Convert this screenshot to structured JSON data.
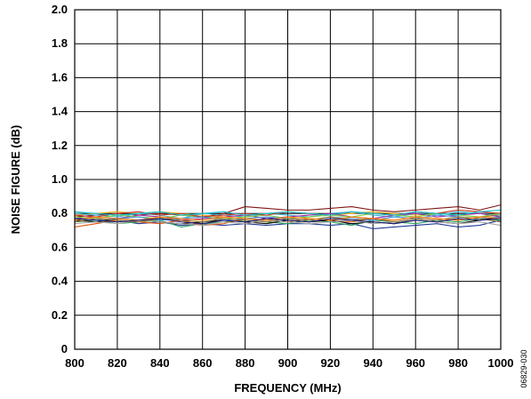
{
  "chart_data": {
    "type": "line",
    "xlabel": "FREQUENCY (MHz)",
    "ylabel": "NOISE FIGURE (dB)",
    "xlim": [
      800,
      1000
    ],
    "ylim": [
      0,
      2.0
    ],
    "x_ticks": [
      "800",
      "820",
      "840",
      "860",
      "880",
      "900",
      "920",
      "940",
      "960",
      "980",
      "1000"
    ],
    "y_ticks": [
      "0",
      "0.2",
      "0.4",
      "0.6",
      "0.8",
      "1.0",
      "1.2",
      "1.4",
      "1.6",
      "1.8",
      "2.0"
    ],
    "grid": true,
    "x": [
      800,
      810,
      820,
      830,
      840,
      850,
      860,
      870,
      880,
      890,
      900,
      910,
      920,
      930,
      940,
      950,
      960,
      970,
      980,
      990,
      1000
    ],
    "series": [
      {
        "color": "#7f1416",
        "values": [
          0.78,
          0.79,
          0.8,
          0.79,
          0.8,
          0.79,
          0.78,
          0.8,
          0.84,
          0.83,
          0.82,
          0.82,
          0.83,
          0.84,
          0.82,
          0.81,
          0.82,
          0.83,
          0.84,
          0.82,
          0.85
        ]
      },
      {
        "color": "#1f3a93",
        "values": [
          0.76,
          0.75,
          0.76,
          0.74,
          0.75,
          0.73,
          0.74,
          0.73,
          0.74,
          0.73,
          0.74,
          0.74,
          0.73,
          0.74,
          0.71,
          0.72,
          0.73,
          0.74,
          0.72,
          0.73,
          0.76
        ]
      },
      {
        "color": "#e8b21c",
        "values": [
          0.79,
          0.8,
          0.81,
          0.8,
          0.81,
          0.8,
          0.79,
          0.78,
          0.79,
          0.8,
          0.81,
          0.8,
          0.79,
          0.8,
          0.81,
          0.8,
          0.79,
          0.8,
          0.82,
          0.81,
          0.8
        ]
      },
      {
        "color": "#2ca25f",
        "values": [
          0.75,
          0.76,
          0.74,
          0.75,
          0.76,
          0.72,
          0.74,
          0.75,
          0.76,
          0.75,
          0.74,
          0.76,
          0.75,
          0.73,
          0.76,
          0.75,
          0.74,
          0.76,
          0.75,
          0.77,
          0.76
        ]
      },
      {
        "color": "#e6550d",
        "values": [
          0.72,
          0.74,
          0.76,
          0.75,
          0.74,
          0.76,
          0.73,
          0.74,
          0.77,
          0.76,
          0.75,
          0.77,
          0.76,
          0.75,
          0.77,
          0.76,
          0.78,
          0.77,
          0.76,
          0.78,
          0.79
        ]
      },
      {
        "color": "#3cb7d8",
        "values": [
          0.8,
          0.79,
          0.78,
          0.8,
          0.79,
          0.77,
          0.8,
          0.79,
          0.78,
          0.8,
          0.79,
          0.78,
          0.8,
          0.81,
          0.79,
          0.78,
          0.8,
          0.79,
          0.81,
          0.8,
          0.79
        ]
      },
      {
        "color": "#9e2a9e",
        "values": [
          0.77,
          0.78,
          0.77,
          0.79,
          0.78,
          0.76,
          0.77,
          0.78,
          0.79,
          0.77,
          0.78,
          0.79,
          0.8,
          0.78,
          0.77,
          0.79,
          0.8,
          0.78,
          0.79,
          0.8,
          0.78
        ]
      },
      {
        "color": "#000000",
        "values": [
          0.76,
          0.75,
          0.77,
          0.76,
          0.75,
          0.74,
          0.75,
          0.76,
          0.75,
          0.74,
          0.76,
          0.75,
          0.76,
          0.74,
          0.75,
          0.74,
          0.76,
          0.75,
          0.74,
          0.76,
          0.78
        ]
      },
      {
        "color": "#a6a6a6",
        "values": [
          0.74,
          0.75,
          0.74,
          0.76,
          0.75,
          0.74,
          0.73,
          0.75,
          0.74,
          0.76,
          0.75,
          0.74,
          0.75,
          0.76,
          0.74,
          0.75,
          0.76,
          0.75,
          0.74,
          0.75,
          0.73
        ]
      },
      {
        "color": "#7ecb3a",
        "values": [
          0.78,
          0.77,
          0.79,
          0.78,
          0.77,
          0.79,
          0.78,
          0.77,
          0.78,
          0.79,
          0.77,
          0.78,
          0.79,
          0.78,
          0.8,
          0.79,
          0.78,
          0.8,
          0.79,
          0.78,
          0.8
        ]
      },
      {
        "color": "#c0392b",
        "values": [
          0.79,
          0.78,
          0.8,
          0.81,
          0.79,
          0.8,
          0.78,
          0.79,
          0.8,
          0.79,
          0.81,
          0.8,
          0.79,
          0.81,
          0.8,
          0.79,
          0.81,
          0.8,
          0.82,
          0.81,
          0.8
        ]
      },
      {
        "color": "#4a90d9",
        "values": [
          0.77,
          0.76,
          0.77,
          0.78,
          0.76,
          0.77,
          0.78,
          0.76,
          0.77,
          0.78,
          0.77,
          0.76,
          0.78,
          0.77,
          0.76,
          0.78,
          0.77,
          0.79,
          0.78,
          0.77,
          0.78
        ]
      },
      {
        "color": "#8c6d31",
        "values": [
          0.75,
          0.77,
          0.76,
          0.75,
          0.77,
          0.76,
          0.75,
          0.77,
          0.76,
          0.75,
          0.77,
          0.76,
          0.78,
          0.76,
          0.77,
          0.75,
          0.77,
          0.76,
          0.78,
          0.77,
          0.75
        ]
      },
      {
        "color": "#17becf",
        "values": [
          0.81,
          0.8,
          0.79,
          0.8,
          0.81,
          0.79,
          0.8,
          0.81,
          0.79,
          0.8,
          0.81,
          0.8,
          0.79,
          0.81,
          0.8,
          0.79,
          0.81,
          0.8,
          0.79,
          0.81,
          0.82
        ]
      },
      {
        "color": "#ff7f0e",
        "values": [
          0.76,
          0.78,
          0.77,
          0.76,
          0.78,
          0.77,
          0.76,
          0.78,
          0.77,
          0.76,
          0.78,
          0.77,
          0.76,
          0.78,
          0.77,
          0.76,
          0.78,
          0.77,
          0.76,
          0.78,
          0.77
        ]
      },
      {
        "color": "#1a1a6e",
        "values": [
          0.77,
          0.76,
          0.75,
          0.76,
          0.77,
          0.75,
          0.74,
          0.76,
          0.75,
          0.77,
          0.76,
          0.75,
          0.77,
          0.76,
          0.75,
          0.74,
          0.76,
          0.75,
          0.77,
          0.76,
          0.77
        ]
      }
    ]
  },
  "figure_code": "06829-030"
}
